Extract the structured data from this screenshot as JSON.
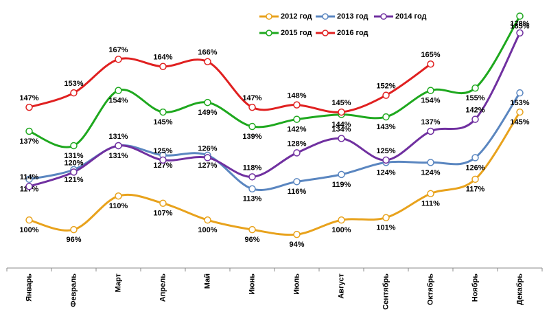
{
  "chart_data": {
    "type": "line",
    "categories": [
      "Январь",
      "Февраль",
      "Март",
      "Апрель",
      "Май",
      "Июнь",
      "Июль",
      "Август",
      "Сентябрь",
      "Октябрь",
      "Ноябрь",
      "Декабрь"
    ],
    "ylim": [
      80,
      190
    ],
    "series": [
      {
        "name": "2012 год",
        "color": "#e8a21c",
        "values": [
          100,
          96,
          110,
          107,
          100,
          96,
          94,
          100,
          101,
          111,
          117,
          145
        ],
        "value_labels": [
          "100%",
          "96%",
          "110%",
          "107%",
          "100%",
          "96%",
          "94%",
          "100%",
          "101%",
          "111%",
          "117%",
          "145%"
        ]
      },
      {
        "name": "2013 год",
        "color": "#5a86c0",
        "values": [
          117,
          121,
          131,
          127,
          127,
          113,
          116,
          119,
          124,
          124,
          126,
          153
        ],
        "value_labels": [
          "117%",
          "121%",
          "131%",
          "127%",
          "127%",
          "113%",
          "116%",
          "119%",
          "124%",
          "124%",
          "126%",
          "153%"
        ]
      },
      {
        "name": "2014 год",
        "color": "#7030a0",
        "values": [
          114,
          120,
          131,
          125,
          126,
          118,
          128,
          134,
          125,
          137,
          142,
          178
        ],
        "value_labels": [
          "114%",
          "120%",
          "131%",
          "125%",
          "126%",
          "118%",
          "128%",
          "134%",
          "125%",
          "137%",
          "142%",
          "178%"
        ]
      },
      {
        "name": "2015 год",
        "color": "#1ea81e",
        "values": [
          137,
          131,
          154,
          145,
          149,
          139,
          142,
          144,
          143,
          154,
          155,
          185
        ],
        "value_labels": [
          "137%",
          "131%",
          "154%",
          "145%",
          "149%",
          "139%",
          "142%",
          "144%",
          "143%",
          "154%",
          "155%",
          "185%"
        ]
      },
      {
        "name": "2016 год",
        "color": "#e02020",
        "values": [
          147,
          153,
          167,
          164,
          166,
          147,
          148,
          145,
          152,
          165,
          null,
          null
        ],
        "value_labels": [
          "147%",
          "153%",
          "167%",
          "164%",
          "166%",
          "147%",
          "148%",
          "145%",
          "152%",
          "165%",
          null,
          null
        ]
      }
    ]
  }
}
